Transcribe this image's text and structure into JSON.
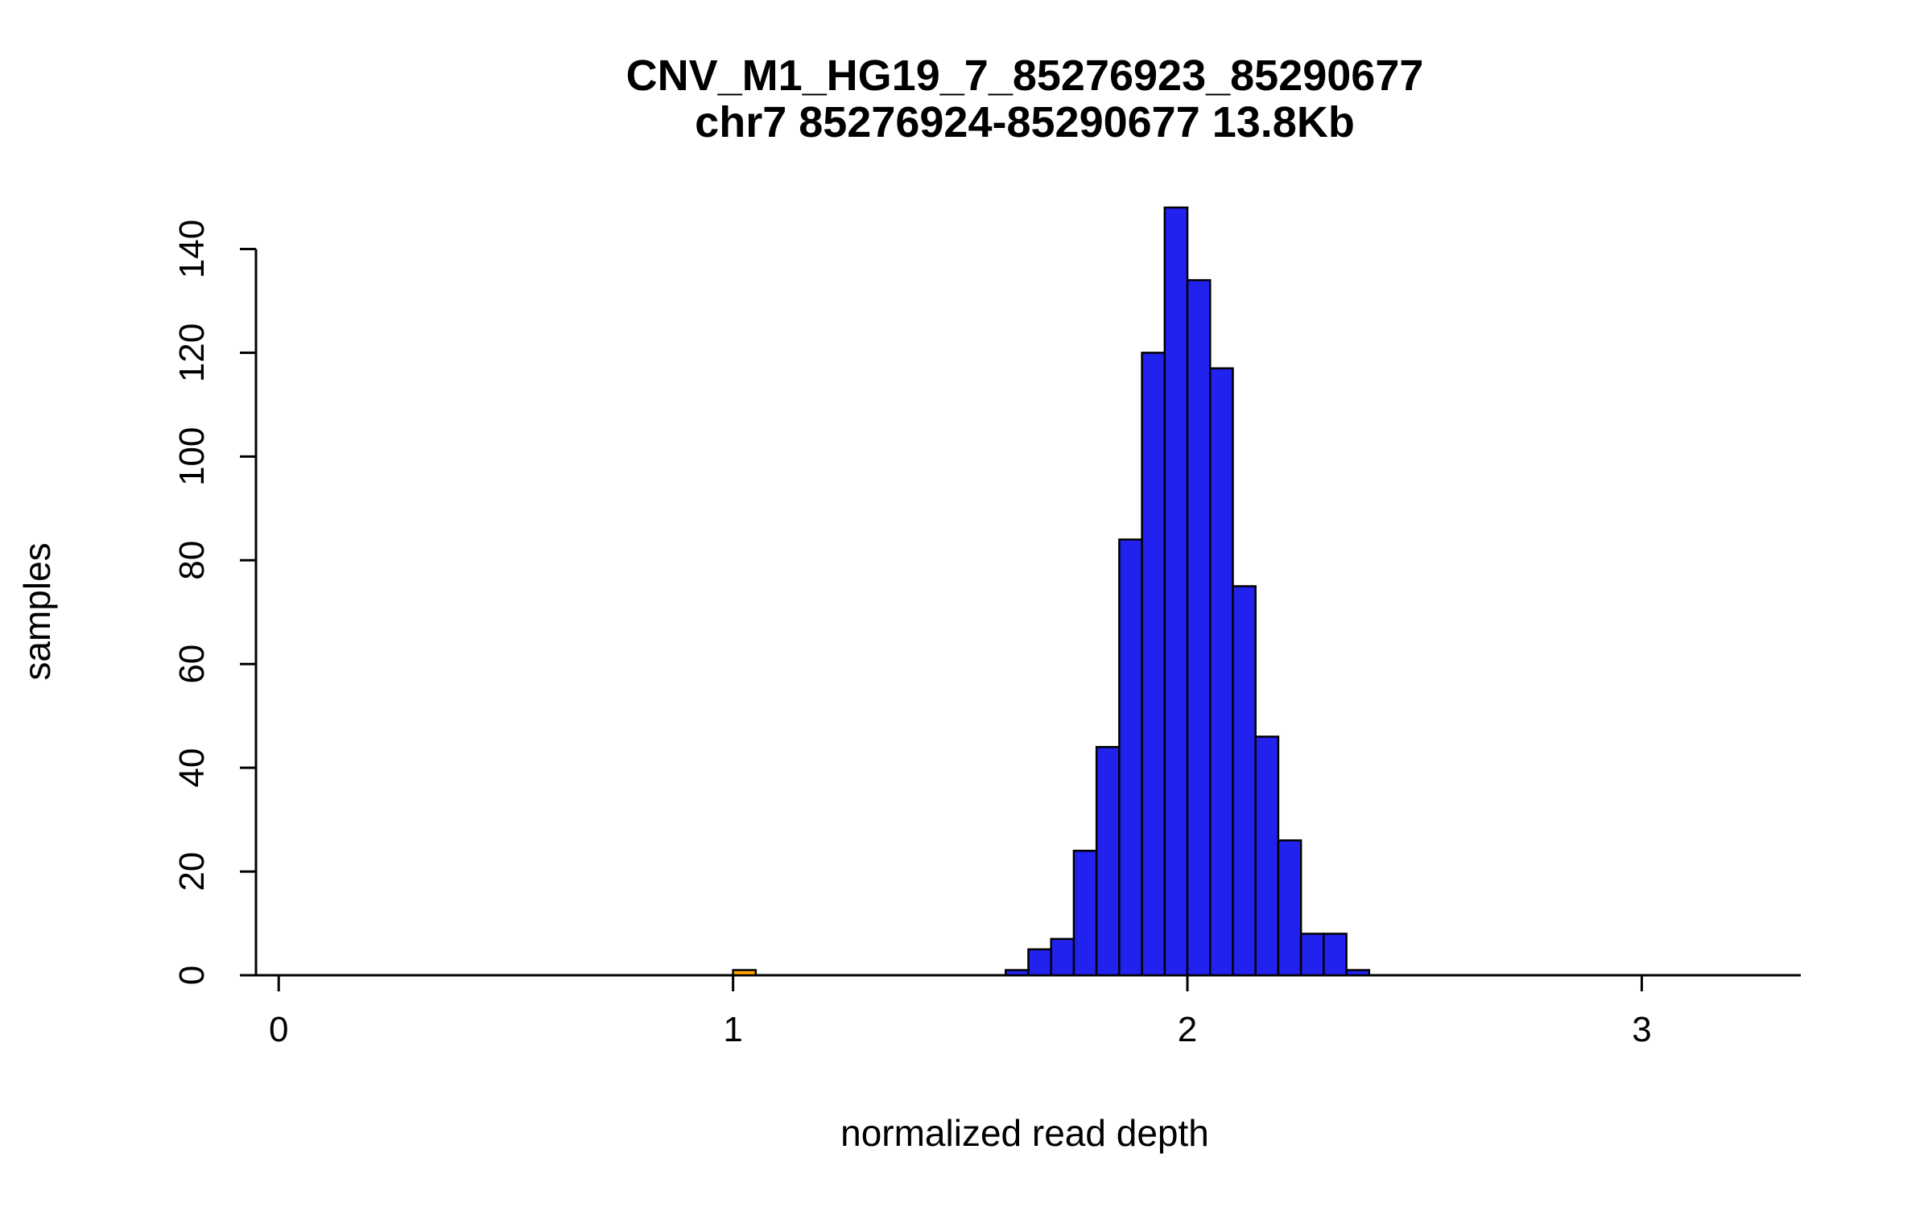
{
  "page": {
    "background": "#FFFFFF"
  },
  "chart_data": {
    "type": "bar",
    "subtype": "histogram",
    "title": "CNV_M1_HG19_7_85276923_85290677",
    "subtitle": "chr7 85276924-85290677 13.8Kb",
    "xlabel": "normalized read depth",
    "ylabel": "samples",
    "xlim": [
      -0.05,
      3.35
    ],
    "ylim": [
      0,
      150
    ],
    "x_ticks": [
      0,
      1,
      2,
      3
    ],
    "y_ticks": [
      0,
      20,
      40,
      60,
      80,
      100,
      120,
      140
    ],
    "bin_width": 0.05,
    "grid": false,
    "legend": "none",
    "colors": {
      "bar_fill": "#2222EE",
      "bar_outline": "#000000",
      "outlier_fill": "#FFA500",
      "axis": "#000000",
      "text": "#000000"
    },
    "bins": [
      {
        "start": 1.0,
        "count": 1,
        "fill": "#FFA500"
      },
      {
        "start": 1.6,
        "count": 1
      },
      {
        "start": 1.65,
        "count": 5
      },
      {
        "start": 1.7,
        "count": 7
      },
      {
        "start": 1.75,
        "count": 24
      },
      {
        "start": 1.8,
        "count": 44
      },
      {
        "start": 1.85,
        "count": 84
      },
      {
        "start": 1.9,
        "count": 120
      },
      {
        "start": 1.95,
        "count": 148
      },
      {
        "start": 2.0,
        "count": 134
      },
      {
        "start": 2.05,
        "count": 117
      },
      {
        "start": 2.1,
        "count": 75
      },
      {
        "start": 2.15,
        "count": 46
      },
      {
        "start": 2.2,
        "count": 26
      },
      {
        "start": 2.25,
        "count": 8
      },
      {
        "start": 2.3,
        "count": 8
      },
      {
        "start": 2.35,
        "count": 1
      }
    ]
  }
}
